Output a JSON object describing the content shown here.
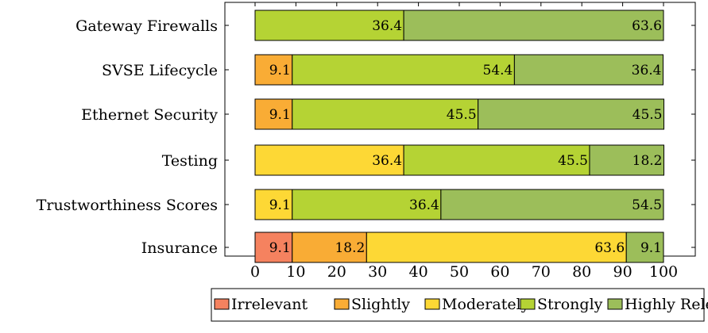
{
  "chart_data": {
    "type": "bar",
    "orientation": "horizontal",
    "stacked": true,
    "categories": [
      "Gateway Firewalls",
      "SVSE Lifecycle",
      "Ethernet Security",
      "Testing",
      "Trustworthiness Scores",
      "Insurance"
    ],
    "series": [
      {
        "name": "Irrelevant",
        "color": "#f5825f",
        "values": [
          0,
          0,
          0,
          0,
          0,
          9.1
        ]
      },
      {
        "name": "Slightly",
        "color": "#f9ac35",
        "values": [
          0,
          9.1,
          9.1,
          0,
          0,
          18.2
        ]
      },
      {
        "name": "Moderately",
        "color": "#fdd835",
        "values": [
          0,
          0,
          0,
          36.4,
          9.1,
          63.6
        ]
      },
      {
        "name": "Strongly",
        "color": "#b5d334",
        "values": [
          36.4,
          54.4,
          45.5,
          45.5,
          36.4,
          0
        ]
      },
      {
        "name": "Highly Relevant",
        "color": "#9cbe5a",
        "values": [
          63.6,
          36.4,
          45.5,
          18.2,
          54.5,
          9.1
        ]
      }
    ],
    "x_ticks": [
      0,
      10,
      20,
      30,
      40,
      50,
      60,
      70,
      80,
      90,
      100
    ],
    "xlim": [
      0,
      100
    ],
    "title": "",
    "xlabel": "",
    "ylabel": "",
    "grid": false,
    "legend_position": "bottom"
  }
}
